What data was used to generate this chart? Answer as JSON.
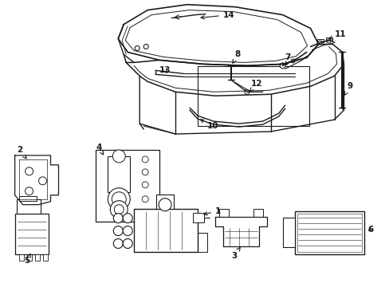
{
  "bg_color": "#ffffff",
  "line_color": "#1a1a1a",
  "fig_width": 4.89,
  "fig_height": 3.6,
  "dpi": 100,
  "label_fontsize": 7.5,
  "lw": 0.9
}
